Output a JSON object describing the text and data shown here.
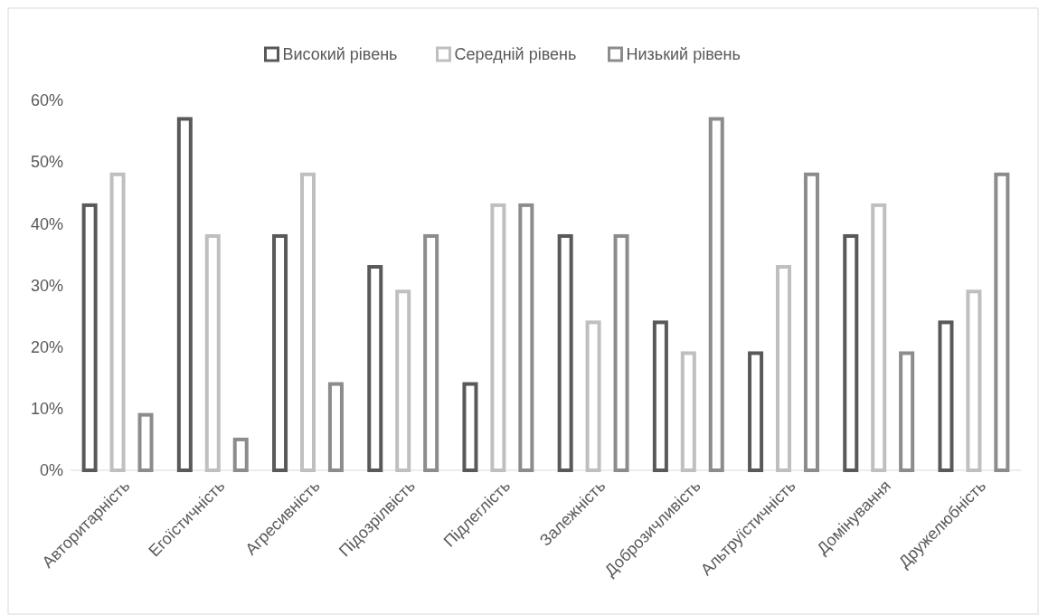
{
  "chart_data": {
    "type": "bar",
    "categories": [
      "Авторитарність",
      "Егоїстичність",
      "Агресивність",
      "Підозрілвість",
      "Підлеглість",
      "Залежність",
      "Доброзичливість",
      "Альтруїстичність",
      "Домінування",
      "Дружелюбність"
    ],
    "series": [
      {
        "name": "Високий рівень",
        "color": "#595959",
        "values": [
          43,
          57,
          38,
          33,
          14,
          38,
          24,
          19,
          38,
          24
        ]
      },
      {
        "name": "Середній рівень",
        "color": "#bfbfbf",
        "values": [
          48,
          38,
          48,
          29,
          43,
          24,
          19,
          33,
          43,
          29
        ]
      },
      {
        "name": "Низький рівень",
        "color": "#8c8c8c",
        "values": [
          9,
          5,
          14,
          38,
          43,
          38,
          57,
          48,
          19,
          48
        ]
      }
    ],
    "ylim": [
      0,
      60
    ],
    "yticks": [
      {
        "value": 0,
        "label": "0%"
      },
      {
        "value": 10,
        "label": "10%"
      },
      {
        "value": 20,
        "label": "20%"
      },
      {
        "value": 30,
        "label": "30%"
      },
      {
        "value": 40,
        "label": "40%"
      },
      {
        "value": 50,
        "label": "50%"
      },
      {
        "value": 60,
        "label": "60%"
      }
    ],
    "legend": "top",
    "grid": false
  }
}
